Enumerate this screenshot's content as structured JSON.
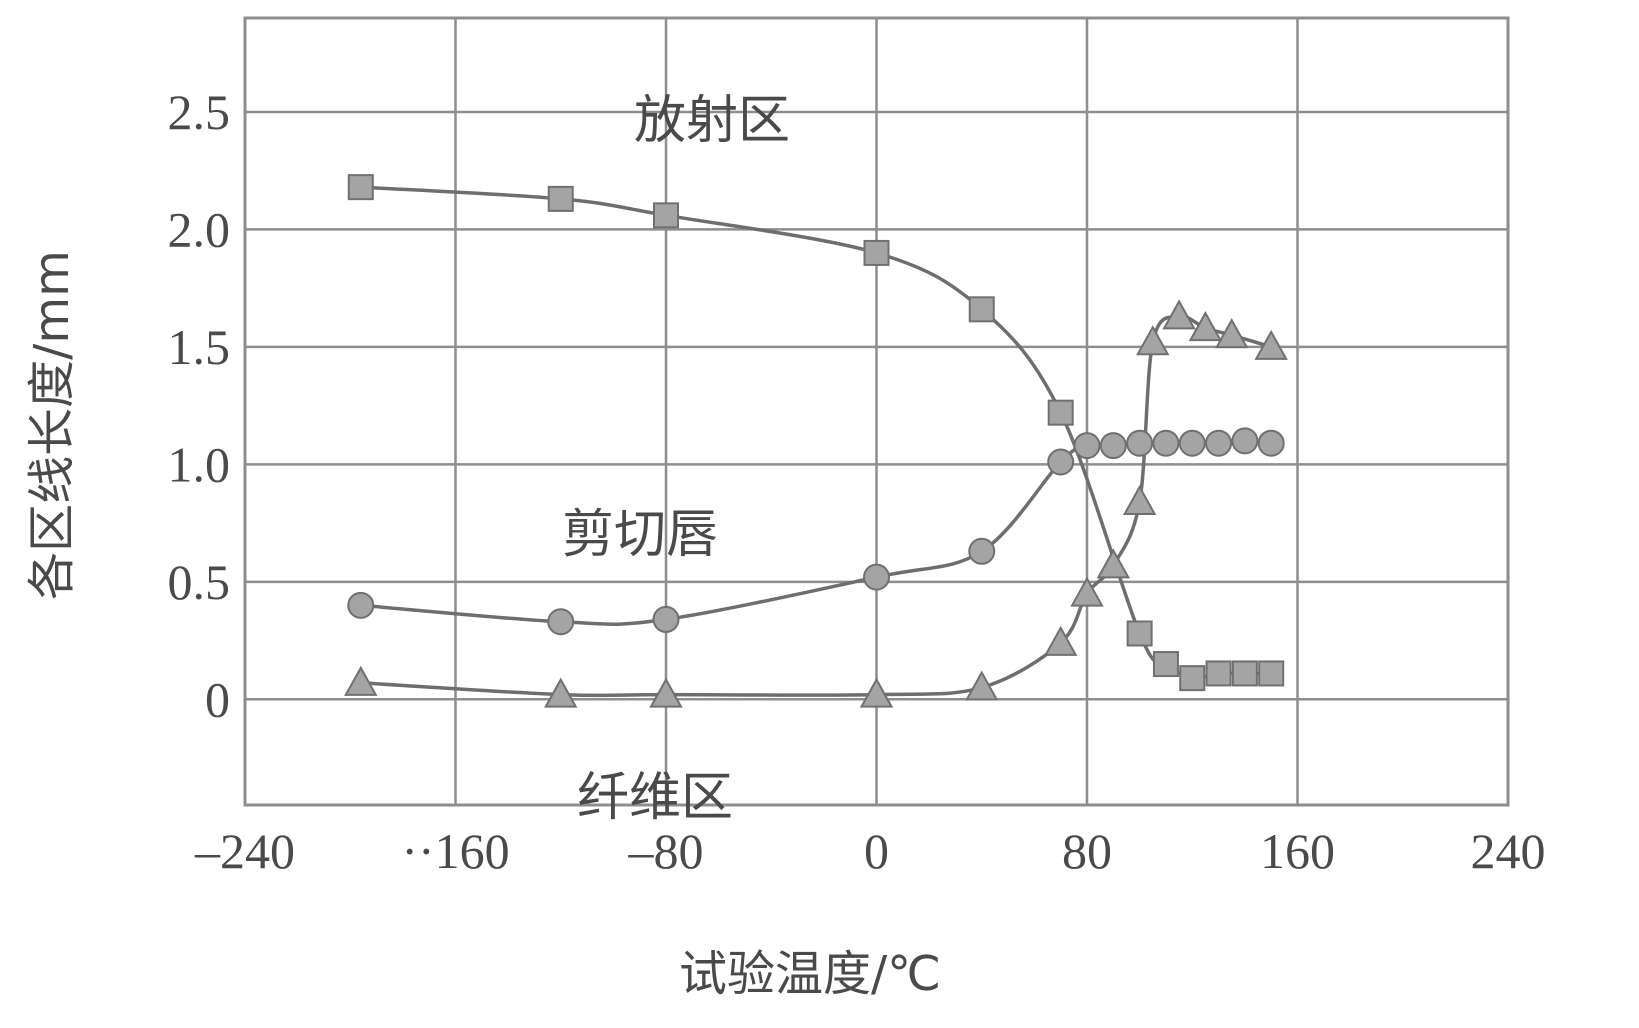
{
  "chart_data": {
    "type": "line",
    "title": "",
    "xlabel": "试验温度/℃",
    "ylabel": "各区线长度/mm",
    "xlim": [
      -240,
      240
    ],
    "ylim": [
      -0.45,
      2.9
    ],
    "grid": true,
    "x_ticks": [
      -240,
      -160,
      -80,
      0,
      80,
      160,
      240
    ],
    "x_tick_labels": [
      "–240",
      "··160",
      "–80",
      "0",
      "80",
      "160",
      "240"
    ],
    "y_ticks": [
      0,
      0.5,
      1.0,
      1.5,
      2.0,
      2.5
    ],
    "y_tick_labels": [
      "0",
      "0.5",
      "1.0",
      "1.5",
      "2.0",
      "2.5"
    ],
    "annotations": [
      "放射区",
      "剪切唇",
      "纤维区"
    ],
    "series": [
      {
        "marker": "square",
        "label_ref": "放射区",
        "x": [
          -196,
          -120,
          -80,
          0,
          40,
          70,
          100,
          110,
          120,
          130,
          140,
          150
        ],
        "y": [
          2.18,
          2.13,
          2.06,
          1.9,
          1.66,
          1.22,
          0.28,
          0.15,
          0.09,
          0.11,
          0.11,
          0.11
        ]
      },
      {
        "marker": "circle",
        "label_ref": "剪切唇",
        "x": [
          -196,
          -120,
          -80,
          0,
          40,
          70,
          80,
          90,
          100,
          110,
          120,
          130,
          140,
          150
        ],
        "y": [
          0.4,
          0.33,
          0.34,
          0.52,
          0.63,
          1.01,
          1.08,
          1.08,
          1.09,
          1.09,
          1.09,
          1.09,
          1.1,
          1.09
        ]
      },
      {
        "marker": "triangle",
        "label_ref": "纤维区",
        "x": [
          -196,
          -120,
          -80,
          0,
          40,
          70,
          80,
          90,
          100,
          105,
          115,
          125,
          135,
          150
        ],
        "y": [
          0.07,
          0.02,
          0.02,
          0.02,
          0.05,
          0.24,
          0.45,
          0.57,
          0.84,
          1.52,
          1.63,
          1.58,
          1.55,
          1.5
        ]
      }
    ]
  }
}
